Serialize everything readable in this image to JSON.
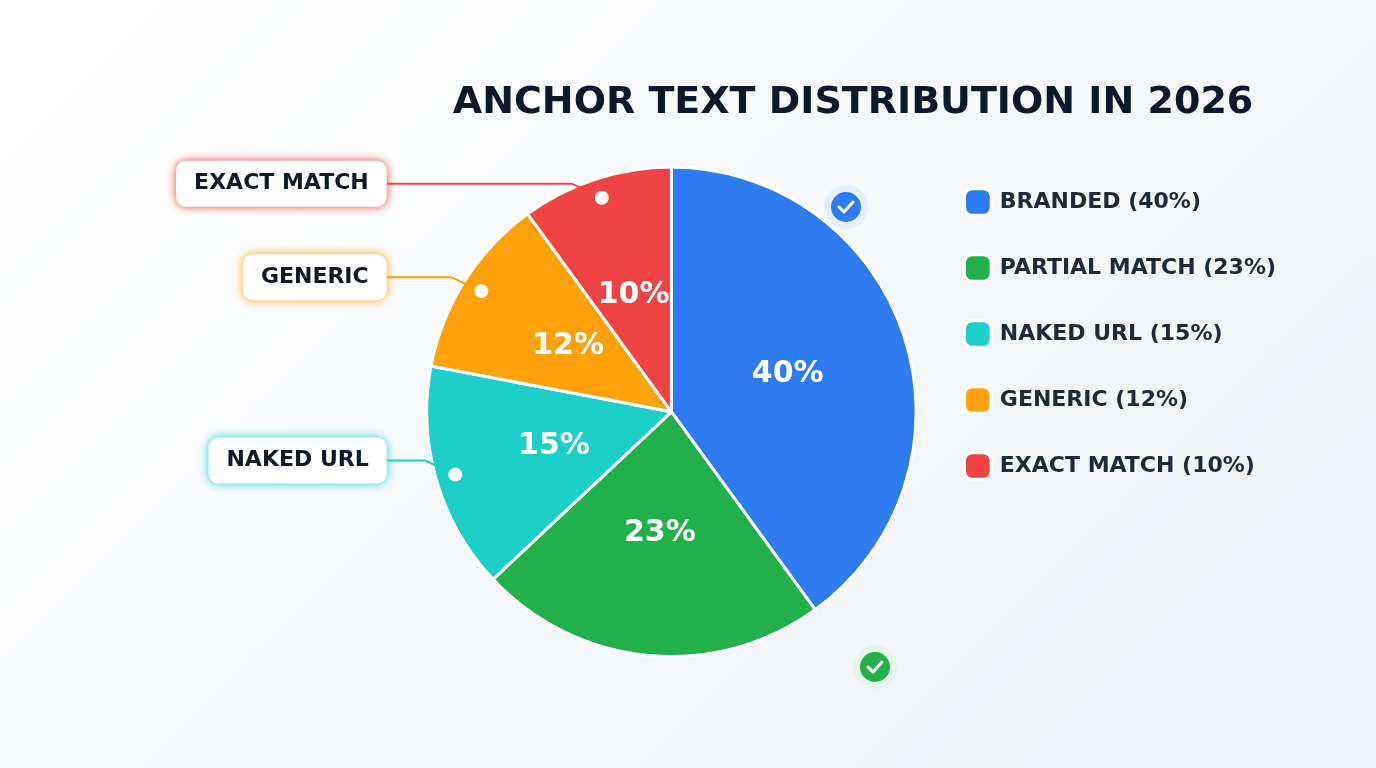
{
  "chart_data": {
    "type": "pie",
    "title": "ANCHOR TEXT DISTRIBUTION IN 2026",
    "categories": [
      "BRANDED (40%)",
      "PARTIAL MATCH (23%)",
      "NAKED URL (15%)",
      "GENERIC (12%)",
      "EXACT MATCH (10%)"
    ],
    "values": [
      40,
      23,
      15,
      12,
      10
    ],
    "colors": [
      "#2f7cf0",
      "#22b04b",
      "#1ccfc9",
      "#ffa10a",
      "#f04444"
    ],
    "value_labels": [
      "40%",
      "23%",
      "15%",
      "12%",
      "10%"
    ],
    "legend": "right",
    "annotations": [
      {
        "text": "EXACT MATCH",
        "x": "EXACT MATCH (10%)"
      },
      {
        "text": "GENERIC",
        "x": "GENERIC (12%)"
      },
      {
        "text": "NAKED URL",
        "x": "NAKED URL (15%)"
      }
    ]
  }
}
